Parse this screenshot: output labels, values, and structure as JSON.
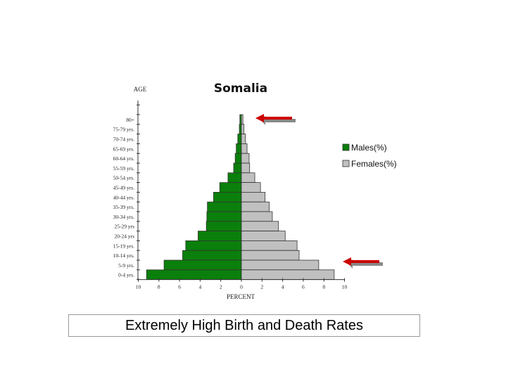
{
  "chart_data": {
    "type": "bar",
    "orientation": "horizontal-pyramid",
    "title": "Somalia",
    "ylabel": "AGE",
    "xlabel": "PERCENT",
    "xlim": [
      -10,
      10
    ],
    "x_ticks": [
      "10",
      "8",
      "6",
      "4",
      "2",
      "0",
      "2",
      "4",
      "6",
      "8",
      "10"
    ],
    "categories": [
      "80+",
      "75-79 yrs.",
      "70-74 yrs.",
      "65-69 yrs.",
      "60-64 yrs.",
      "55-59 yrs.",
      "50-54 yrs.",
      "45-49 yrs.",
      "40-44 yrs.",
      "35-39 yrs.",
      "30-34 yrs.",
      "25-29 yrs",
      "20-24 yrs",
      "15-19 yrs.",
      "10-14 yrs.",
      "5-9 yrs.",
      "0-4 yrs."
    ],
    "series": [
      {
        "name": "Males(%)",
        "color": "#0b7f0b",
        "side": "left",
        "values": [
          0.15,
          0.2,
          0.35,
          0.5,
          0.6,
          0.75,
          1.3,
          2.1,
          2.7,
          3.3,
          3.35,
          3.4,
          4.2,
          5.4,
          5.7,
          7.5,
          9.2
        ]
      },
      {
        "name": "Females(%)",
        "color": "#c0c0c0",
        "side": "right",
        "values": [
          0.15,
          0.25,
          0.4,
          0.55,
          0.75,
          0.8,
          1.3,
          1.85,
          2.3,
          2.7,
          3.0,
          3.6,
          4.25,
          5.4,
          5.6,
          7.5,
          9.0
        ]
      }
    ],
    "left_tick_color": "#d03030",
    "legend_position": "right",
    "annotations": [
      {
        "type": "arrow",
        "color": "#cc0000",
        "points_to": "80+"
      },
      {
        "type": "arrow",
        "color": "#cc0000",
        "points_to": "5-9 yrs."
      }
    ]
  },
  "caption": "Extremely High Birth and Death Rates"
}
